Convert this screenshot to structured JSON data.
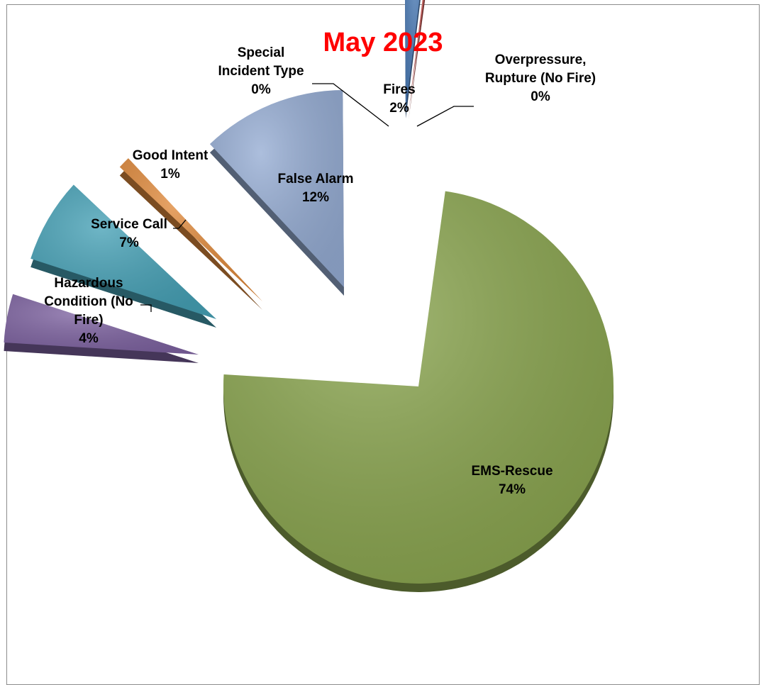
{
  "chart_data": {
    "type": "pie",
    "title": "May 2023",
    "slices": [
      {
        "name": "Fires",
        "value": 2,
        "label_lines": [
          "Fires",
          "2%"
        ],
        "color": "#4a7ab5"
      },
      {
        "name": "Overpressure, Rupture (No Fire)",
        "value": 0.2,
        "label_lines": [
          "Overpressure,",
          "Rupture (No Fire)",
          "0%"
        ],
        "color": "#c0504d"
      },
      {
        "name": "EMS-Rescue",
        "value": 74,
        "label_lines": [
          "EMS-Rescue",
          "74%"
        ],
        "color": "#8aa54f"
      },
      {
        "name": "Hazardous Condition (No Fire)",
        "value": 4,
        "label_lines": [
          "Hazardous",
          "Condition (No",
          "Fire)",
          "4%"
        ],
        "color": "#7e63a1"
      },
      {
        "name": "Service Call",
        "value": 7,
        "label_lines": [
          "Service Call",
          "7%"
        ],
        "color": "#46a1b6"
      },
      {
        "name": "Good Intent",
        "value": 1,
        "label_lines": [
          "Good Intent",
          "1%"
        ],
        "color": "#e08a3c"
      },
      {
        "name": "False Alarm",
        "value": 12,
        "label_lines": [
          "False Alarm",
          "12%"
        ],
        "color": "#95acd3"
      },
      {
        "name": "Special Incident Type",
        "value": 0.1,
        "label_lines": [
          "Special",
          "Incident Type",
          "0%"
        ],
        "color": "#4a7ab5"
      }
    ],
    "legend": "none"
  }
}
